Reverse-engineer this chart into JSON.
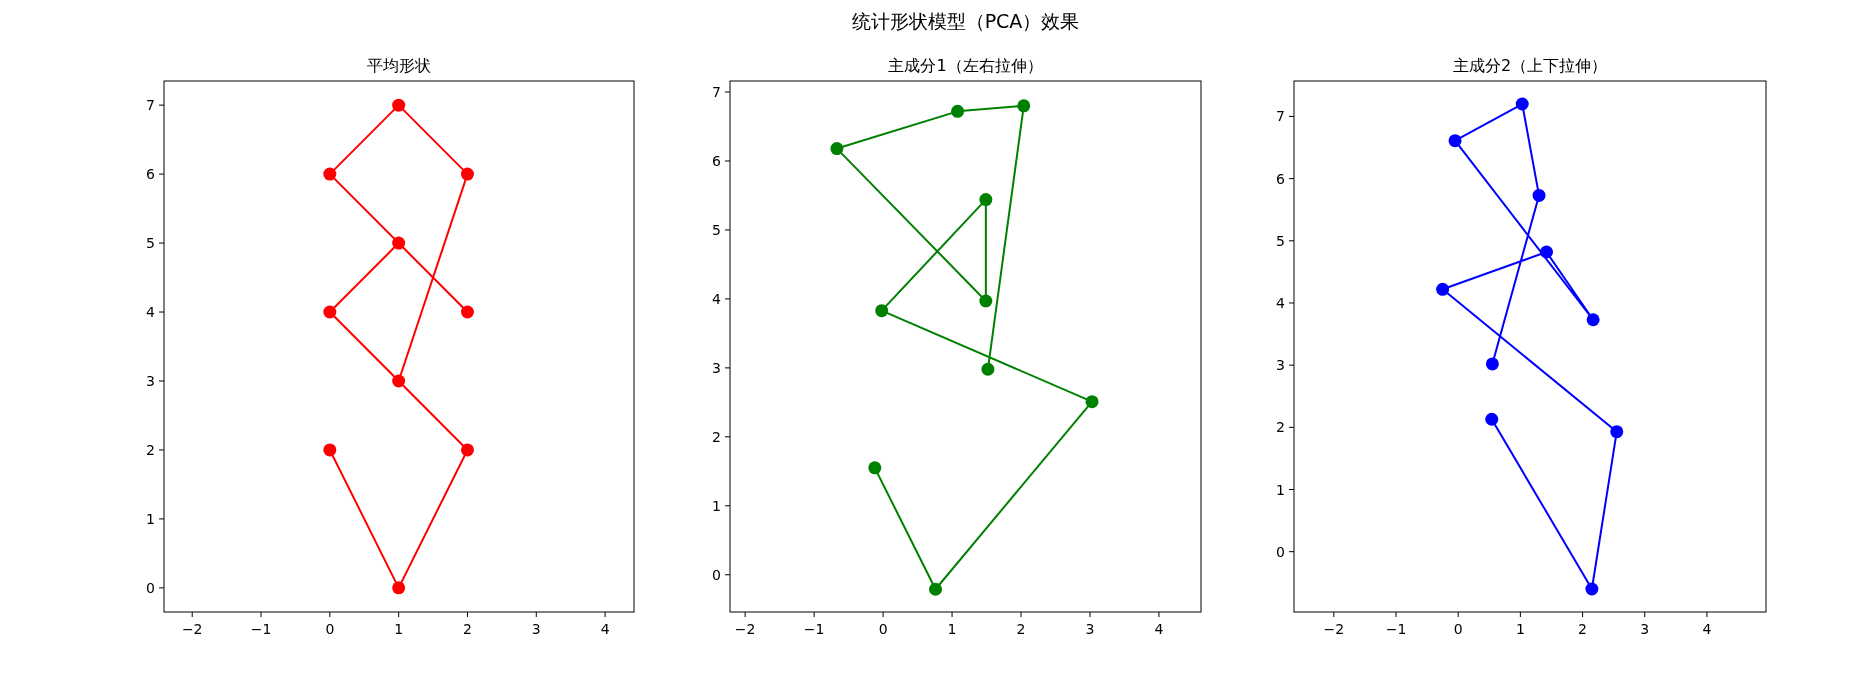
{
  "chart_data": [
    {
      "type": "line",
      "subtitle": "平均形状",
      "marker": "circle",
      "line_style": "solid",
      "grid": false,
      "xlim": [
        -2.41,
        4.42
      ],
      "ylim": [
        -0.35,
        7.35
      ],
      "xticks": [
        -2,
        -1,
        0,
        1,
        2,
        3,
        4
      ],
      "yticks": [
        0,
        1,
        2,
        3,
        4,
        5,
        6,
        7
      ],
      "series": [
        {
          "color": "#ff0000",
          "x": [
            0,
            1,
            2,
            0,
            1,
            2,
            0,
            1,
            2,
            1
          ],
          "values": [
            2,
            0,
            2,
            4,
            5,
            4,
            6,
            7,
            6,
            3
          ]
        }
      ]
    },
    {
      "type": "line",
      "title": "统计形状模型（PCA）效果",
      "subtitle": "主成分1（左右拉伸）",
      "marker": "circle",
      "line_style": "solid",
      "grid": false,
      "xlim": [
        -2.22,
        4.61
      ],
      "ylim": [
        -0.54,
        7.16
      ],
      "xticks": [
        -2,
        -1,
        0,
        1,
        2,
        3,
        4
      ],
      "yticks": [
        0,
        1,
        2,
        3,
        4,
        5,
        6,
        7
      ],
      "series": [
        {
          "color": "#008000",
          "x": [
            -0.12,
            0.76,
            3.03,
            -0.02,
            1.49,
            1.49,
            -0.67,
            1.08,
            2.04,
            1.52
          ],
          "values": [
            1.55,
            -0.21,
            2.51,
            3.83,
            5.44,
            3.97,
            6.18,
            6.72,
            6.8,
            2.98
          ]
        }
      ]
    },
    {
      "type": "line",
      "subtitle": "主成分2（上下拉伸）",
      "marker": "circle",
      "line_style": "solid",
      "grid": false,
      "xlim": [
        -2.64,
        4.95
      ],
      "ylim": [
        -0.97,
        7.57
      ],
      "xticks": [
        -2,
        -1,
        0,
        1,
        2,
        3,
        4
      ],
      "yticks": [
        0,
        1,
        2,
        3,
        4,
        5,
        6,
        7
      ],
      "series": [
        {
          "color": "#0000ff",
          "x": [
            0.54,
            2.15,
            2.55,
            -0.25,
            1.42,
            2.17,
            -0.05,
            1.03,
            1.3,
            0.55
          ],
          "values": [
            2.13,
            -0.6,
            1.93,
            4.22,
            4.82,
            3.73,
            6.61,
            7.2,
            5.73,
            3.02
          ]
        }
      ]
    }
  ]
}
